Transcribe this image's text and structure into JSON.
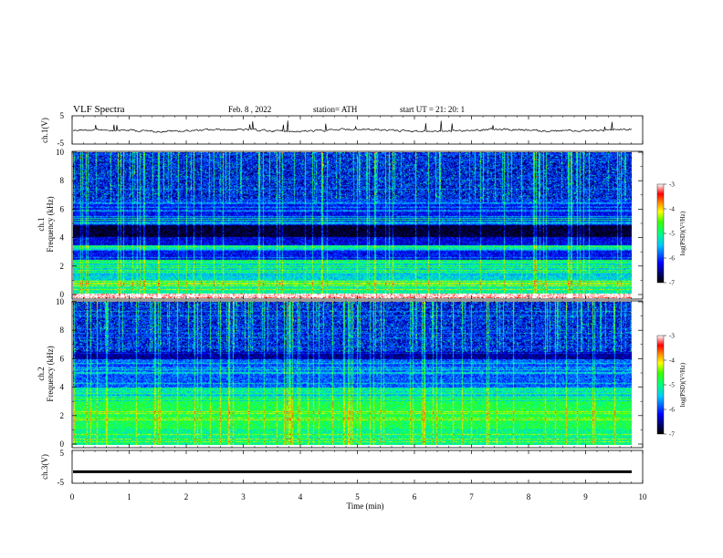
{
  "header": {
    "title": "VLF  Spectra",
    "date": "Feb. 8  , 2022",
    "station": "station= ATH",
    "start": "start  UT  =    21: 20: 1"
  },
  "chart_data": [
    {
      "name": "ch1-voltage",
      "type": "line",
      "ylabel": "ch.1(V)",
      "ylim": [
        -5,
        5
      ],
      "yticks": [
        "5",
        "-5"
      ],
      "xlim": [
        0,
        10
      ]
    },
    {
      "name": "ch1-spectrogram",
      "type": "heatmap",
      "ylabel": "Frequency  (kHz)",
      "channel_label": "ch.1",
      "ylim": [
        0,
        10
      ],
      "yticks": [
        "0",
        "2",
        "4",
        "6",
        "8",
        "10"
      ],
      "xlim": [
        0,
        9.8
      ],
      "colorbar": {
        "label": "log(PSD)(V²/Hz)",
        "range": [
          -7,
          -3
        ],
        "ticks": [
          "-3",
          "-4",
          "-5",
          "-6",
          "-7"
        ]
      },
      "bands": [
        {
          "from": 0,
          "to": 0.3,
          "level": "white"
        },
        {
          "from": 0.3,
          "to": 1.2,
          "level": "green-cyan"
        },
        {
          "from": 1.2,
          "to": 2.6,
          "level": "cyan-green"
        },
        {
          "from": 2.6,
          "to": 3.3,
          "level": "blue"
        },
        {
          "from": 3.3,
          "to": 3.6,
          "level": "cyan"
        },
        {
          "from": 3.6,
          "to": 4.2,
          "level": "blue"
        },
        {
          "from": 4.2,
          "to": 5.0,
          "level": "black"
        },
        {
          "from": 5.0,
          "to": 6.8,
          "level": "blue"
        },
        {
          "from": 6.8,
          "to": 10,
          "level": "black-blue with green spikes"
        }
      ]
    },
    {
      "name": "ch2-spectrogram",
      "type": "heatmap",
      "ylabel": "Frequency  (kHz)",
      "channel_label": "ch.2",
      "ylim": [
        0,
        10
      ],
      "yticks": [
        "0",
        "2",
        "4",
        "6",
        "8",
        "10"
      ],
      "xlim": [
        0,
        9.8
      ],
      "colorbar": {
        "label": "log(PSD)(V²/Hz)",
        "range": [
          -7,
          -3
        ],
        "ticks": [
          "-3",
          "-4",
          "-5",
          "-6",
          "-7"
        ]
      },
      "bands": [
        {
          "from": 0,
          "to": 1.2,
          "level": "green"
        },
        {
          "from": 1.2,
          "to": 3.0,
          "level": "green-yellow"
        },
        {
          "from": 3.0,
          "to": 4.0,
          "level": "cyan-green"
        },
        {
          "from": 4.0,
          "to": 6.0,
          "level": "blue-cyan"
        },
        {
          "from": 6.0,
          "to": 10,
          "level": "black-blue with green spikes"
        }
      ]
    },
    {
      "name": "ch3-voltage",
      "type": "line",
      "ylabel": "ch.3(V)",
      "ylim": [
        -5,
        5
      ],
      "yticks": [
        "5",
        "-5"
      ],
      "xlim": [
        0,
        10
      ],
      "value": -1.5
    }
  ],
  "xaxis": {
    "label": "Time  (min)",
    "ticks": [
      "0",
      "1",
      "2",
      "3",
      "4",
      "5",
      "6",
      "7",
      "8",
      "9",
      "10"
    ],
    "range": [
      0,
      10
    ]
  }
}
